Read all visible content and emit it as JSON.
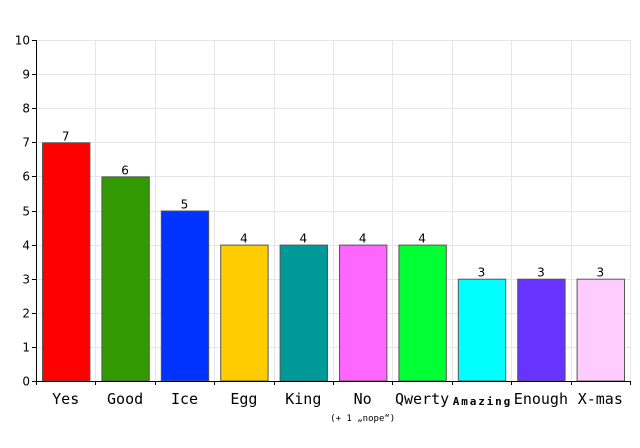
{
  "chart_data": {
    "type": "bar",
    "title": "",
    "xlabel": "",
    "ylabel": "",
    "ylim": [
      0,
      10
    ],
    "yticks": [
      0,
      1,
      2,
      3,
      4,
      5,
      6,
      7,
      8,
      9,
      10
    ],
    "grid": true,
    "categories": [
      "Yes",
      "Good",
      "Ice",
      "Egg",
      "King",
      "No",
      "Qwerty",
      "Amazing",
      "Enough",
      "X-mas"
    ],
    "values": [
      7,
      6,
      5,
      4,
      4,
      4,
      4,
      3,
      3,
      3
    ],
    "colors": [
      "#ff0000",
      "#339900",
      "#0033ff",
      "#ffcc00",
      "#009999",
      "#ff66ff",
      "#00ff33",
      "#00ffff",
      "#6633ff",
      "#ffccff"
    ],
    "annotations": [
      {
        "category": "No",
        "text": "(+ 1 „nope“)"
      }
    ]
  }
}
